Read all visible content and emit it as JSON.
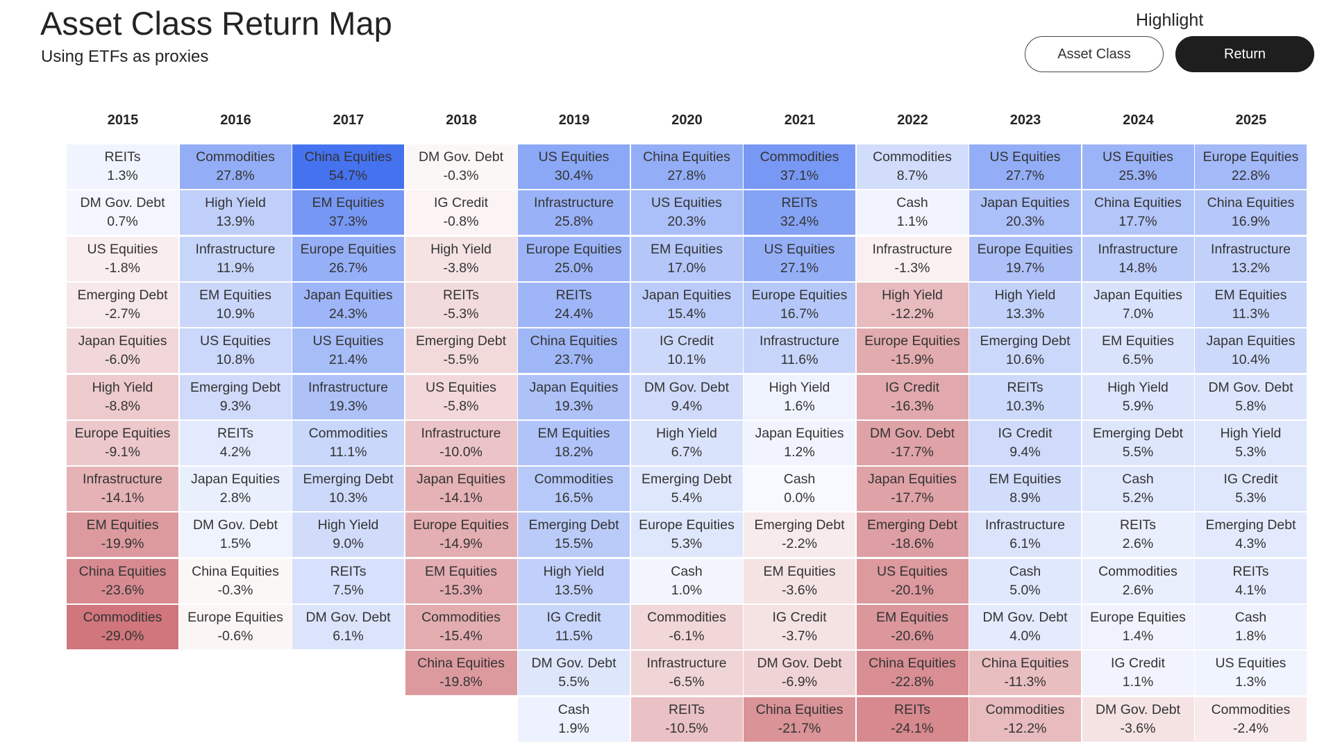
{
  "header": {
    "title": "Asset Class Return Map",
    "subtitle": "Using ETFs as proxies"
  },
  "highlight": {
    "label": "Highlight",
    "options": [
      "Asset Class",
      "Return"
    ],
    "selected": "Return"
  },
  "colors": {
    "positive_max": "#4472f0",
    "neutral": "#ffffff",
    "negative_max": "#d0767c"
  },
  "chart_data": {
    "type": "table",
    "columns": [
      {
        "year": "2015",
        "rows": [
          {
            "asset": "REITs",
            "ret": "1.3%",
            "value": 1.3
          },
          {
            "asset": "DM Gov. Debt",
            "ret": "0.7%",
            "value": 0.7
          },
          {
            "asset": "US Equities",
            "ret": "-1.8%",
            "value": -1.8
          },
          {
            "asset": "Emerging Debt",
            "ret": "-2.7%",
            "value": -2.7
          },
          {
            "asset": "Japan Equities",
            "ret": "-6.0%",
            "value": -6.0
          },
          {
            "asset": "High Yield",
            "ret": "-8.8%",
            "value": -8.8
          },
          {
            "asset": "Europe Equities",
            "ret": "-9.1%",
            "value": -9.1
          },
          {
            "asset": "Infrastructure",
            "ret": "-14.1%",
            "value": -14.1
          },
          {
            "asset": "EM Equities",
            "ret": "-19.9%",
            "value": -19.9
          },
          {
            "asset": "China Equities",
            "ret": "-23.6%",
            "value": -23.6
          },
          {
            "asset": "Commodities",
            "ret": "-29.0%",
            "value": -29.0
          }
        ]
      },
      {
        "year": "2016",
        "rows": [
          {
            "asset": "Commodities",
            "ret": "27.8%",
            "value": 27.8
          },
          {
            "asset": "High Yield",
            "ret": "13.9%",
            "value": 13.9
          },
          {
            "asset": "Infrastructure",
            "ret": "11.9%",
            "value": 11.9
          },
          {
            "asset": "EM Equities",
            "ret": "10.9%",
            "value": 10.9
          },
          {
            "asset": "US Equities",
            "ret": "10.8%",
            "value": 10.8
          },
          {
            "asset": "Emerging Debt",
            "ret": "9.3%",
            "value": 9.3
          },
          {
            "asset": "REITs",
            "ret": "4.2%",
            "value": 4.2
          },
          {
            "asset": "Japan Equities",
            "ret": "2.8%",
            "value": 2.8
          },
          {
            "asset": "DM Gov. Debt",
            "ret": "1.5%",
            "value": 1.5
          },
          {
            "asset": "China Equities",
            "ret": "-0.3%",
            "value": -0.3
          },
          {
            "asset": "Europe Equities",
            "ret": "-0.6%",
            "value": -0.6
          }
        ]
      },
      {
        "year": "2017",
        "rows": [
          {
            "asset": "China Equities",
            "ret": "54.7%",
            "value": 54.7
          },
          {
            "asset": "EM Equities",
            "ret": "37.3%",
            "value": 37.3
          },
          {
            "asset": "Europe Equities",
            "ret": "26.7%",
            "value": 26.7
          },
          {
            "asset": "Japan Equities",
            "ret": "24.3%",
            "value": 24.3
          },
          {
            "asset": "US Equities",
            "ret": "21.4%",
            "value": 21.4
          },
          {
            "asset": "Infrastructure",
            "ret": "19.3%",
            "value": 19.3
          },
          {
            "asset": "Commodities",
            "ret": "11.1%",
            "value": 11.1
          },
          {
            "asset": "Emerging Debt",
            "ret": "10.3%",
            "value": 10.3
          },
          {
            "asset": "High Yield",
            "ret": "9.0%",
            "value": 9.0
          },
          {
            "asset": "REITs",
            "ret": "7.5%",
            "value": 7.5
          },
          {
            "asset": "DM Gov. Debt",
            "ret": "6.1%",
            "value": 6.1
          }
        ]
      },
      {
        "year": "2018",
        "rows": [
          {
            "asset": "DM Gov. Debt",
            "ret": "-0.3%",
            "value": -0.3
          },
          {
            "asset": "IG Credit",
            "ret": "-0.8%",
            "value": -0.8
          },
          {
            "asset": "High Yield",
            "ret": "-3.8%",
            "value": -3.8
          },
          {
            "asset": "REITs",
            "ret": "-5.3%",
            "value": -5.3
          },
          {
            "asset": "Emerging Debt",
            "ret": "-5.5%",
            "value": -5.5
          },
          {
            "asset": "US Equities",
            "ret": "-5.8%",
            "value": -5.8
          },
          {
            "asset": "Infrastructure",
            "ret": "-10.0%",
            "value": -10.0
          },
          {
            "asset": "Japan Equities",
            "ret": "-14.1%",
            "value": -14.1
          },
          {
            "asset": "Europe Equities",
            "ret": "-14.9%",
            "value": -14.9
          },
          {
            "asset": "EM Equities",
            "ret": "-15.3%",
            "value": -15.3
          },
          {
            "asset": "Commodities",
            "ret": "-15.4%",
            "value": -15.4
          },
          {
            "asset": "China Equities",
            "ret": "-19.8%",
            "value": -19.8
          }
        ]
      },
      {
        "year": "2019",
        "rows": [
          {
            "asset": "US Equities",
            "ret": "30.4%",
            "value": 30.4
          },
          {
            "asset": "Infrastructure",
            "ret": "25.8%",
            "value": 25.8
          },
          {
            "asset": "Europe Equities",
            "ret": "25.0%",
            "value": 25.0
          },
          {
            "asset": "REITs",
            "ret": "24.4%",
            "value": 24.4
          },
          {
            "asset": "China Equities",
            "ret": "23.7%",
            "value": 23.7
          },
          {
            "asset": "Japan Equities",
            "ret": "19.3%",
            "value": 19.3
          },
          {
            "asset": "EM Equities",
            "ret": "18.2%",
            "value": 18.2
          },
          {
            "asset": "Commodities",
            "ret": "16.5%",
            "value": 16.5
          },
          {
            "asset": "Emerging Debt",
            "ret": "15.5%",
            "value": 15.5
          },
          {
            "asset": "High Yield",
            "ret": "13.5%",
            "value": 13.5
          },
          {
            "asset": "IG Credit",
            "ret": "11.5%",
            "value": 11.5
          },
          {
            "asset": "DM Gov. Debt",
            "ret": "5.5%",
            "value": 5.5
          },
          {
            "asset": "Cash",
            "ret": "1.9%",
            "value": 1.9
          }
        ]
      },
      {
        "year": "2020",
        "rows": [
          {
            "asset": "China Equities",
            "ret": "27.8%",
            "value": 27.8
          },
          {
            "asset": "US Equities",
            "ret": "20.3%",
            "value": 20.3
          },
          {
            "asset": "EM Equities",
            "ret": "17.0%",
            "value": 17.0
          },
          {
            "asset": "Japan Equities",
            "ret": "15.4%",
            "value": 15.4
          },
          {
            "asset": "IG Credit",
            "ret": "10.1%",
            "value": 10.1
          },
          {
            "asset": "DM Gov. Debt",
            "ret": "9.4%",
            "value": 9.4
          },
          {
            "asset": "High Yield",
            "ret": "6.7%",
            "value": 6.7
          },
          {
            "asset": "Emerging Debt",
            "ret": "5.4%",
            "value": 5.4
          },
          {
            "asset": "Europe Equities",
            "ret": "5.3%",
            "value": 5.3
          },
          {
            "asset": "Cash",
            "ret": "1.0%",
            "value": 1.0
          },
          {
            "asset": "Commodities",
            "ret": "-6.1%",
            "value": -6.1
          },
          {
            "asset": "Infrastructure",
            "ret": "-6.5%",
            "value": -6.5
          },
          {
            "asset": "REITs",
            "ret": "-10.5%",
            "value": -10.5
          }
        ]
      },
      {
        "year": "2021",
        "rows": [
          {
            "asset": "Commodities",
            "ret": "37.1%",
            "value": 37.1
          },
          {
            "asset": "REITs",
            "ret": "32.4%",
            "value": 32.4
          },
          {
            "asset": "US Equities",
            "ret": "27.1%",
            "value": 27.1
          },
          {
            "asset": "Europe Equities",
            "ret": "16.7%",
            "value": 16.7
          },
          {
            "asset": "Infrastructure",
            "ret": "11.6%",
            "value": 11.6
          },
          {
            "asset": "High Yield",
            "ret": "1.6%",
            "value": 1.6
          },
          {
            "asset": "Japan Equities",
            "ret": "1.2%",
            "value": 1.2
          },
          {
            "asset": "Cash",
            "ret": "0.0%",
            "value": 0.0
          },
          {
            "asset": "Emerging Debt",
            "ret": "-2.2%",
            "value": -2.2
          },
          {
            "asset": "EM Equities",
            "ret": "-3.6%",
            "value": -3.6
          },
          {
            "asset": "IG Credit",
            "ret": "-3.7%",
            "value": -3.7
          },
          {
            "asset": "DM Gov. Debt",
            "ret": "-6.9%",
            "value": -6.9
          },
          {
            "asset": "China Equities",
            "ret": "-21.7%",
            "value": -21.7
          }
        ]
      },
      {
        "year": "2022",
        "rows": [
          {
            "asset": "Commodities",
            "ret": "8.7%",
            "value": 8.7
          },
          {
            "asset": "Cash",
            "ret": "1.1%",
            "value": 1.1
          },
          {
            "asset": "Infrastructure",
            "ret": "-1.3%",
            "value": -1.3
          },
          {
            "asset": "High Yield",
            "ret": "-12.2%",
            "value": -12.2
          },
          {
            "asset": "Europe Equities",
            "ret": "-15.9%",
            "value": -15.9
          },
          {
            "asset": "IG Credit",
            "ret": "-16.3%",
            "value": -16.3
          },
          {
            "asset": "DM Gov. Debt",
            "ret": "-17.7%",
            "value": -17.7
          },
          {
            "asset": "Japan Equities",
            "ret": "-17.7%",
            "value": -17.7
          },
          {
            "asset": "Emerging Debt",
            "ret": "-18.6%",
            "value": -18.6
          },
          {
            "asset": "US Equities",
            "ret": "-20.1%",
            "value": -20.1
          },
          {
            "asset": "EM Equities",
            "ret": "-20.6%",
            "value": -20.6
          },
          {
            "asset": "China Equities",
            "ret": "-22.8%",
            "value": -22.8
          },
          {
            "asset": "REITs",
            "ret": "-24.1%",
            "value": -24.1
          }
        ]
      },
      {
        "year": "2023",
        "rows": [
          {
            "asset": "US Equities",
            "ret": "27.7%",
            "value": 27.7
          },
          {
            "asset": "Japan Equities",
            "ret": "20.3%",
            "value": 20.3
          },
          {
            "asset": "Europe Equities",
            "ret": "19.7%",
            "value": 19.7
          },
          {
            "asset": "High Yield",
            "ret": "13.3%",
            "value": 13.3
          },
          {
            "asset": "Emerging Debt",
            "ret": "10.6%",
            "value": 10.6
          },
          {
            "asset": "REITs",
            "ret": "10.3%",
            "value": 10.3
          },
          {
            "asset": "IG Credit",
            "ret": "9.4%",
            "value": 9.4
          },
          {
            "asset": "EM Equities",
            "ret": "8.9%",
            "value": 8.9
          },
          {
            "asset": "Infrastructure",
            "ret": "6.1%",
            "value": 6.1
          },
          {
            "asset": "Cash",
            "ret": "5.0%",
            "value": 5.0
          },
          {
            "asset": "DM Gov. Debt",
            "ret": "4.0%",
            "value": 4.0
          },
          {
            "asset": "China Equities",
            "ret": "-11.3%",
            "value": -11.3
          },
          {
            "asset": "Commodities",
            "ret": "-12.2%",
            "value": -12.2
          }
        ]
      },
      {
        "year": "2024",
        "rows": [
          {
            "asset": "US Equities",
            "ret": "25.3%",
            "value": 25.3
          },
          {
            "asset": "China Equities",
            "ret": "17.7%",
            "value": 17.7
          },
          {
            "asset": "Infrastructure",
            "ret": "14.8%",
            "value": 14.8
          },
          {
            "asset": "Japan Equities",
            "ret": "7.0%",
            "value": 7.0
          },
          {
            "asset": "EM Equities",
            "ret": "6.5%",
            "value": 6.5
          },
          {
            "asset": "High Yield",
            "ret": "5.9%",
            "value": 5.9
          },
          {
            "asset": "Emerging Debt",
            "ret": "5.5%",
            "value": 5.5
          },
          {
            "asset": "Cash",
            "ret": "5.2%",
            "value": 5.2
          },
          {
            "asset": "REITs",
            "ret": "2.6%",
            "value": 2.6
          },
          {
            "asset": "Commodities",
            "ret": "2.6%",
            "value": 2.6
          },
          {
            "asset": "Europe Equities",
            "ret": "1.4%",
            "value": 1.4
          },
          {
            "asset": "IG Credit",
            "ret": "1.1%",
            "value": 1.1
          },
          {
            "asset": "DM Gov. Debt",
            "ret": "-3.6%",
            "value": -3.6
          }
        ]
      },
      {
        "year": "2025",
        "rows": [
          {
            "asset": "Europe Equities",
            "ret": "22.8%",
            "value": 22.8
          },
          {
            "asset": "China Equities",
            "ret": "16.9%",
            "value": 16.9
          },
          {
            "asset": "Infrastructure",
            "ret": "13.2%",
            "value": 13.2
          },
          {
            "asset": "EM Equities",
            "ret": "11.3%",
            "value": 11.3
          },
          {
            "asset": "Japan Equities",
            "ret": "10.4%",
            "value": 10.4
          },
          {
            "asset": "DM Gov. Debt",
            "ret": "5.8%",
            "value": 5.8
          },
          {
            "asset": "High Yield",
            "ret": "5.3%",
            "value": 5.3
          },
          {
            "asset": "IG Credit",
            "ret": "5.3%",
            "value": 5.3
          },
          {
            "asset": "Emerging Debt",
            "ret": "4.3%",
            "value": 4.3
          },
          {
            "asset": "REITs",
            "ret": "4.1%",
            "value": 4.1
          },
          {
            "asset": "Cash",
            "ret": "1.8%",
            "value": 1.8
          },
          {
            "asset": "US Equities",
            "ret": "1.3%",
            "value": 1.3
          },
          {
            "asset": "Commodities",
            "ret": "-2.4%",
            "value": -2.4
          }
        ]
      }
    ]
  }
}
